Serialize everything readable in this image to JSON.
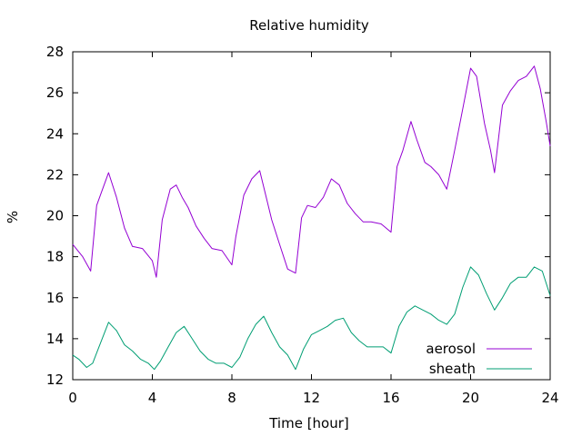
{
  "chart_data": {
    "type": "line",
    "title": "Relative humidity",
    "xlabel": "Time [hour]",
    "ylabel": "%",
    "xlim": [
      0,
      24
    ],
    "ylim": [
      12,
      28
    ],
    "xticks": [
      0,
      4,
      8,
      12,
      16,
      20,
      24
    ],
    "yticks": [
      12,
      14,
      16,
      18,
      20,
      22,
      24,
      26,
      28
    ],
    "grid": false,
    "legend_position": "bottom-right",
    "series": [
      {
        "name": "aerosol",
        "color": "#9400d3",
        "x": [
          0,
          0.5,
          0.9,
          1.2,
          1.5,
          1.8,
          2.2,
          2.6,
          3.0,
          3.5,
          4.0,
          4.2,
          4.5,
          4.9,
          5.2,
          5.5,
          5.8,
          6.2,
          6.6,
          7.0,
          7.5,
          8.0,
          8.2,
          8.6,
          9.0,
          9.4,
          9.7,
          10.0,
          10.4,
          10.8,
          11.2,
          11.5,
          11.8,
          12.2,
          12.6,
          13.0,
          13.4,
          13.8,
          14.2,
          14.6,
          15.0,
          15.5,
          16.0,
          16.3,
          16.6,
          17.0,
          17.3,
          17.7,
          18.0,
          18.4,
          18.8,
          19.2,
          19.6,
          20.0,
          20.3,
          20.7,
          21.0,
          21.2,
          21.6,
          22.0,
          22.4,
          22.8,
          23.2,
          23.5,
          23.8,
          24.0
        ],
        "values": [
          18.6,
          18.0,
          17.3,
          20.5,
          21.3,
          22.1,
          20.9,
          19.4,
          18.5,
          18.4,
          17.8,
          17.0,
          19.8,
          21.3,
          21.5,
          20.9,
          20.4,
          19.5,
          18.9,
          18.4,
          18.3,
          17.6,
          19.0,
          21.0,
          21.8,
          22.2,
          21.0,
          19.8,
          18.6,
          17.4,
          17.2,
          19.9,
          20.5,
          20.4,
          20.9,
          21.8,
          21.5,
          20.6,
          20.1,
          19.7,
          19.7,
          19.6,
          19.2,
          22.4,
          23.2,
          24.6,
          23.7,
          22.6,
          22.4,
          22.0,
          21.3,
          23.2,
          25.2,
          27.2,
          26.8,
          24.5,
          23.2,
          22.1,
          25.4,
          26.1,
          26.6,
          26.8,
          27.3,
          26.2,
          24.6,
          23.4
        ]
      },
      {
        "name": "sheath",
        "color": "#009e73",
        "x": [
          0,
          0.3,
          0.7,
          1.0,
          1.4,
          1.8,
          2.2,
          2.6,
          3.0,
          3.4,
          3.8,
          4.1,
          4.4,
          4.8,
          5.2,
          5.6,
          6.0,
          6.4,
          6.8,
          7.2,
          7.6,
          8.0,
          8.4,
          8.8,
          9.2,
          9.6,
          10.0,
          10.4,
          10.8,
          11.2,
          11.6,
          12.0,
          12.4,
          12.8,
          13.2,
          13.6,
          14.0,
          14.4,
          14.8,
          15.2,
          15.6,
          16.0,
          16.4,
          16.8,
          17.2,
          17.6,
          18.0,
          18.4,
          18.8,
          19.2,
          19.6,
          20.0,
          20.4,
          20.8,
          21.2,
          21.6,
          22.0,
          22.4,
          22.8,
          23.2,
          23.6,
          24.0
        ],
        "values": [
          13.2,
          13.0,
          12.6,
          12.8,
          13.8,
          14.8,
          14.4,
          13.7,
          13.4,
          13.0,
          12.8,
          12.5,
          12.9,
          13.6,
          14.3,
          14.6,
          14.0,
          13.4,
          13.0,
          12.8,
          12.8,
          12.6,
          13.1,
          14.0,
          14.7,
          15.1,
          14.3,
          13.6,
          13.2,
          12.5,
          13.5,
          14.2,
          14.4,
          14.6,
          14.9,
          15.0,
          14.3,
          13.9,
          13.6,
          13.6,
          13.6,
          13.3,
          14.6,
          15.3,
          15.6,
          15.4,
          15.2,
          14.9,
          14.7,
          15.2,
          16.5,
          17.5,
          17.1,
          16.2,
          15.4,
          16.0,
          16.7,
          17.0,
          17.0,
          17.5,
          17.3,
          16.1
        ]
      }
    ]
  }
}
